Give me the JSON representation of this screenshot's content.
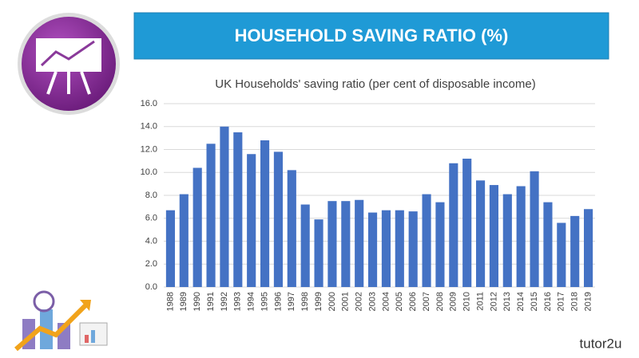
{
  "header": {
    "title": "HOUSEHOLD SAVING RATIO (%)"
  },
  "brand": "tutor2u",
  "chart_data": {
    "type": "bar",
    "title": "UK Households' saving ratio (per cent of disposable income)",
    "categories": [
      "1988",
      "1989",
      "1990",
      "1991",
      "1992",
      "1993",
      "1994",
      "1995",
      "1996",
      "1997",
      "1998",
      "1999",
      "2000",
      "2001",
      "2002",
      "2003",
      "2004",
      "2005",
      "2006",
      "2007",
      "2008",
      "2009",
      "2010",
      "2011",
      "2012",
      "2013",
      "2014",
      "2015",
      "2016",
      "2017",
      "2018",
      "2019"
    ],
    "values": [
      6.7,
      8.1,
      10.4,
      12.5,
      14.0,
      13.5,
      11.6,
      12.8,
      11.8,
      10.2,
      7.2,
      5.9,
      7.5,
      7.5,
      7.6,
      6.5,
      6.7,
      6.7,
      6.6,
      8.1,
      7.4,
      10.8,
      11.2,
      9.3,
      8.9,
      8.1,
      8.8,
      10.1,
      7.4,
      5.6,
      6.2,
      6.8
    ],
    "color": "#4472c4",
    "ylim": [
      0,
      16
    ],
    "yticks": [
      {
        "value": 0,
        "label": "0.0"
      },
      {
        "value": 2,
        "label": "2.0"
      },
      {
        "value": 4,
        "label": "4.0"
      },
      {
        "value": 6,
        "label": "6.0"
      },
      {
        "value": 8,
        "label": "8.0"
      },
      {
        "value": 10,
        "label": "10.0"
      },
      {
        "value": 12,
        "label": "12.0"
      },
      {
        "value": 14,
        "label": "14.0"
      },
      {
        "value": 16,
        "label": "16.0"
      }
    ],
    "grid": true
  }
}
